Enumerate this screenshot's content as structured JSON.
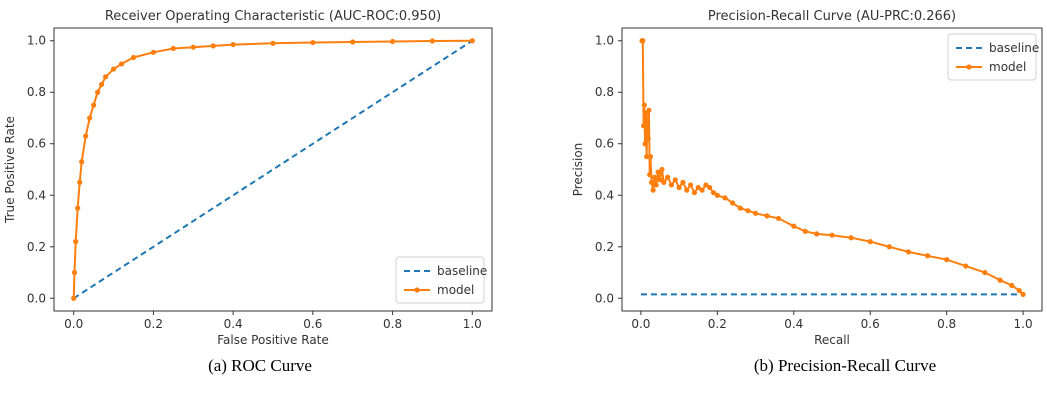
{
  "chart_data": [
    {
      "type": "line",
      "title": "Receiver Operating Characteristic (AUC-ROC:0.950)",
      "xlabel": "False Positive Rate",
      "ylabel": "True Positive Rate",
      "xlim": [
        0,
        1
      ],
      "ylim": [
        0,
        1
      ],
      "xticks": [
        "0.0",
        "0.2",
        "0.4",
        "0.6",
        "0.8",
        "1.0"
      ],
      "yticks": [
        "0.0",
        "0.2",
        "0.4",
        "0.6",
        "0.8",
        "1.0"
      ],
      "grid": false,
      "legend_position": "bottom-right",
      "caption": "(a) ROC Curve",
      "series": [
        {
          "name": "baseline",
          "style": "dashed",
          "color": "#1f77b4",
          "x": [
            0,
            1
          ],
          "y": [
            0,
            1
          ]
        },
        {
          "name": "model",
          "style": "line-markers",
          "color": "#ff7f0e",
          "x": [
            0,
            0.002,
            0.005,
            0.01,
            0.015,
            0.02,
            0.03,
            0.04,
            0.05,
            0.06,
            0.07,
            0.08,
            0.1,
            0.12,
            0.15,
            0.2,
            0.25,
            0.3,
            0.35,
            0.4,
            0.5,
            0.6,
            0.7,
            0.8,
            0.9,
            1.0
          ],
          "y": [
            0,
            0.1,
            0.22,
            0.35,
            0.45,
            0.53,
            0.63,
            0.7,
            0.75,
            0.8,
            0.83,
            0.86,
            0.89,
            0.91,
            0.935,
            0.955,
            0.97,
            0.975,
            0.98,
            0.985,
            0.99,
            0.993,
            0.995,
            0.997,
            0.999,
            1.0
          ]
        }
      ]
    },
    {
      "type": "line",
      "title": "Precision-Recall Curve (AU-PRC:0.266)",
      "xlabel": "Recall",
      "ylabel": "Precision",
      "xlim": [
        0,
        1
      ],
      "ylim": [
        0,
        1
      ],
      "xticks": [
        "0.0",
        "0.2",
        "0.4",
        "0.6",
        "0.8",
        "1.0"
      ],
      "yticks": [
        "0.0",
        "0.2",
        "0.4",
        "0.6",
        "0.8",
        "1.0"
      ],
      "grid": false,
      "legend_position": "top-right",
      "caption": "(b) Precision-Recall Curve",
      "series": [
        {
          "name": "baseline",
          "style": "dashed",
          "color": "#1f77b4",
          "x": [
            0,
            1
          ],
          "y": [
            0.015,
            0.015
          ]
        },
        {
          "name": "model",
          "style": "line-markers",
          "color": "#ff7f0e",
          "x": [
            0.003,
            0.005,
            0.007,
            0.009,
            0.011,
            0.013,
            0.015,
            0.017,
            0.019,
            0.021,
            0.023,
            0.025,
            0.028,
            0.032,
            0.036,
            0.04,
            0.045,
            0.05,
            0.055,
            0.06,
            0.07,
            0.08,
            0.09,
            0.1,
            0.11,
            0.12,
            0.13,
            0.14,
            0.15,
            0.16,
            0.17,
            0.18,
            0.19,
            0.2,
            0.22,
            0.24,
            0.26,
            0.28,
            0.3,
            0.33,
            0.36,
            0.4,
            0.43,
            0.46,
            0.5,
            0.55,
            0.6,
            0.65,
            0.7,
            0.75,
            0.8,
            0.85,
            0.9,
            0.94,
            0.97,
            0.99,
            1.0
          ],
          "y": [
            1.0,
            1.0,
            0.67,
            0.75,
            0.6,
            0.72,
            0.55,
            0.7,
            0.62,
            0.73,
            0.48,
            0.55,
            0.45,
            0.42,
            0.47,
            0.44,
            0.49,
            0.46,
            0.5,
            0.45,
            0.47,
            0.44,
            0.46,
            0.43,
            0.45,
            0.42,
            0.44,
            0.41,
            0.43,
            0.42,
            0.44,
            0.43,
            0.41,
            0.4,
            0.39,
            0.37,
            0.35,
            0.34,
            0.33,
            0.32,
            0.31,
            0.28,
            0.26,
            0.25,
            0.245,
            0.235,
            0.22,
            0.2,
            0.18,
            0.165,
            0.15,
            0.125,
            0.1,
            0.07,
            0.05,
            0.03,
            0.015
          ]
        }
      ]
    }
  ]
}
